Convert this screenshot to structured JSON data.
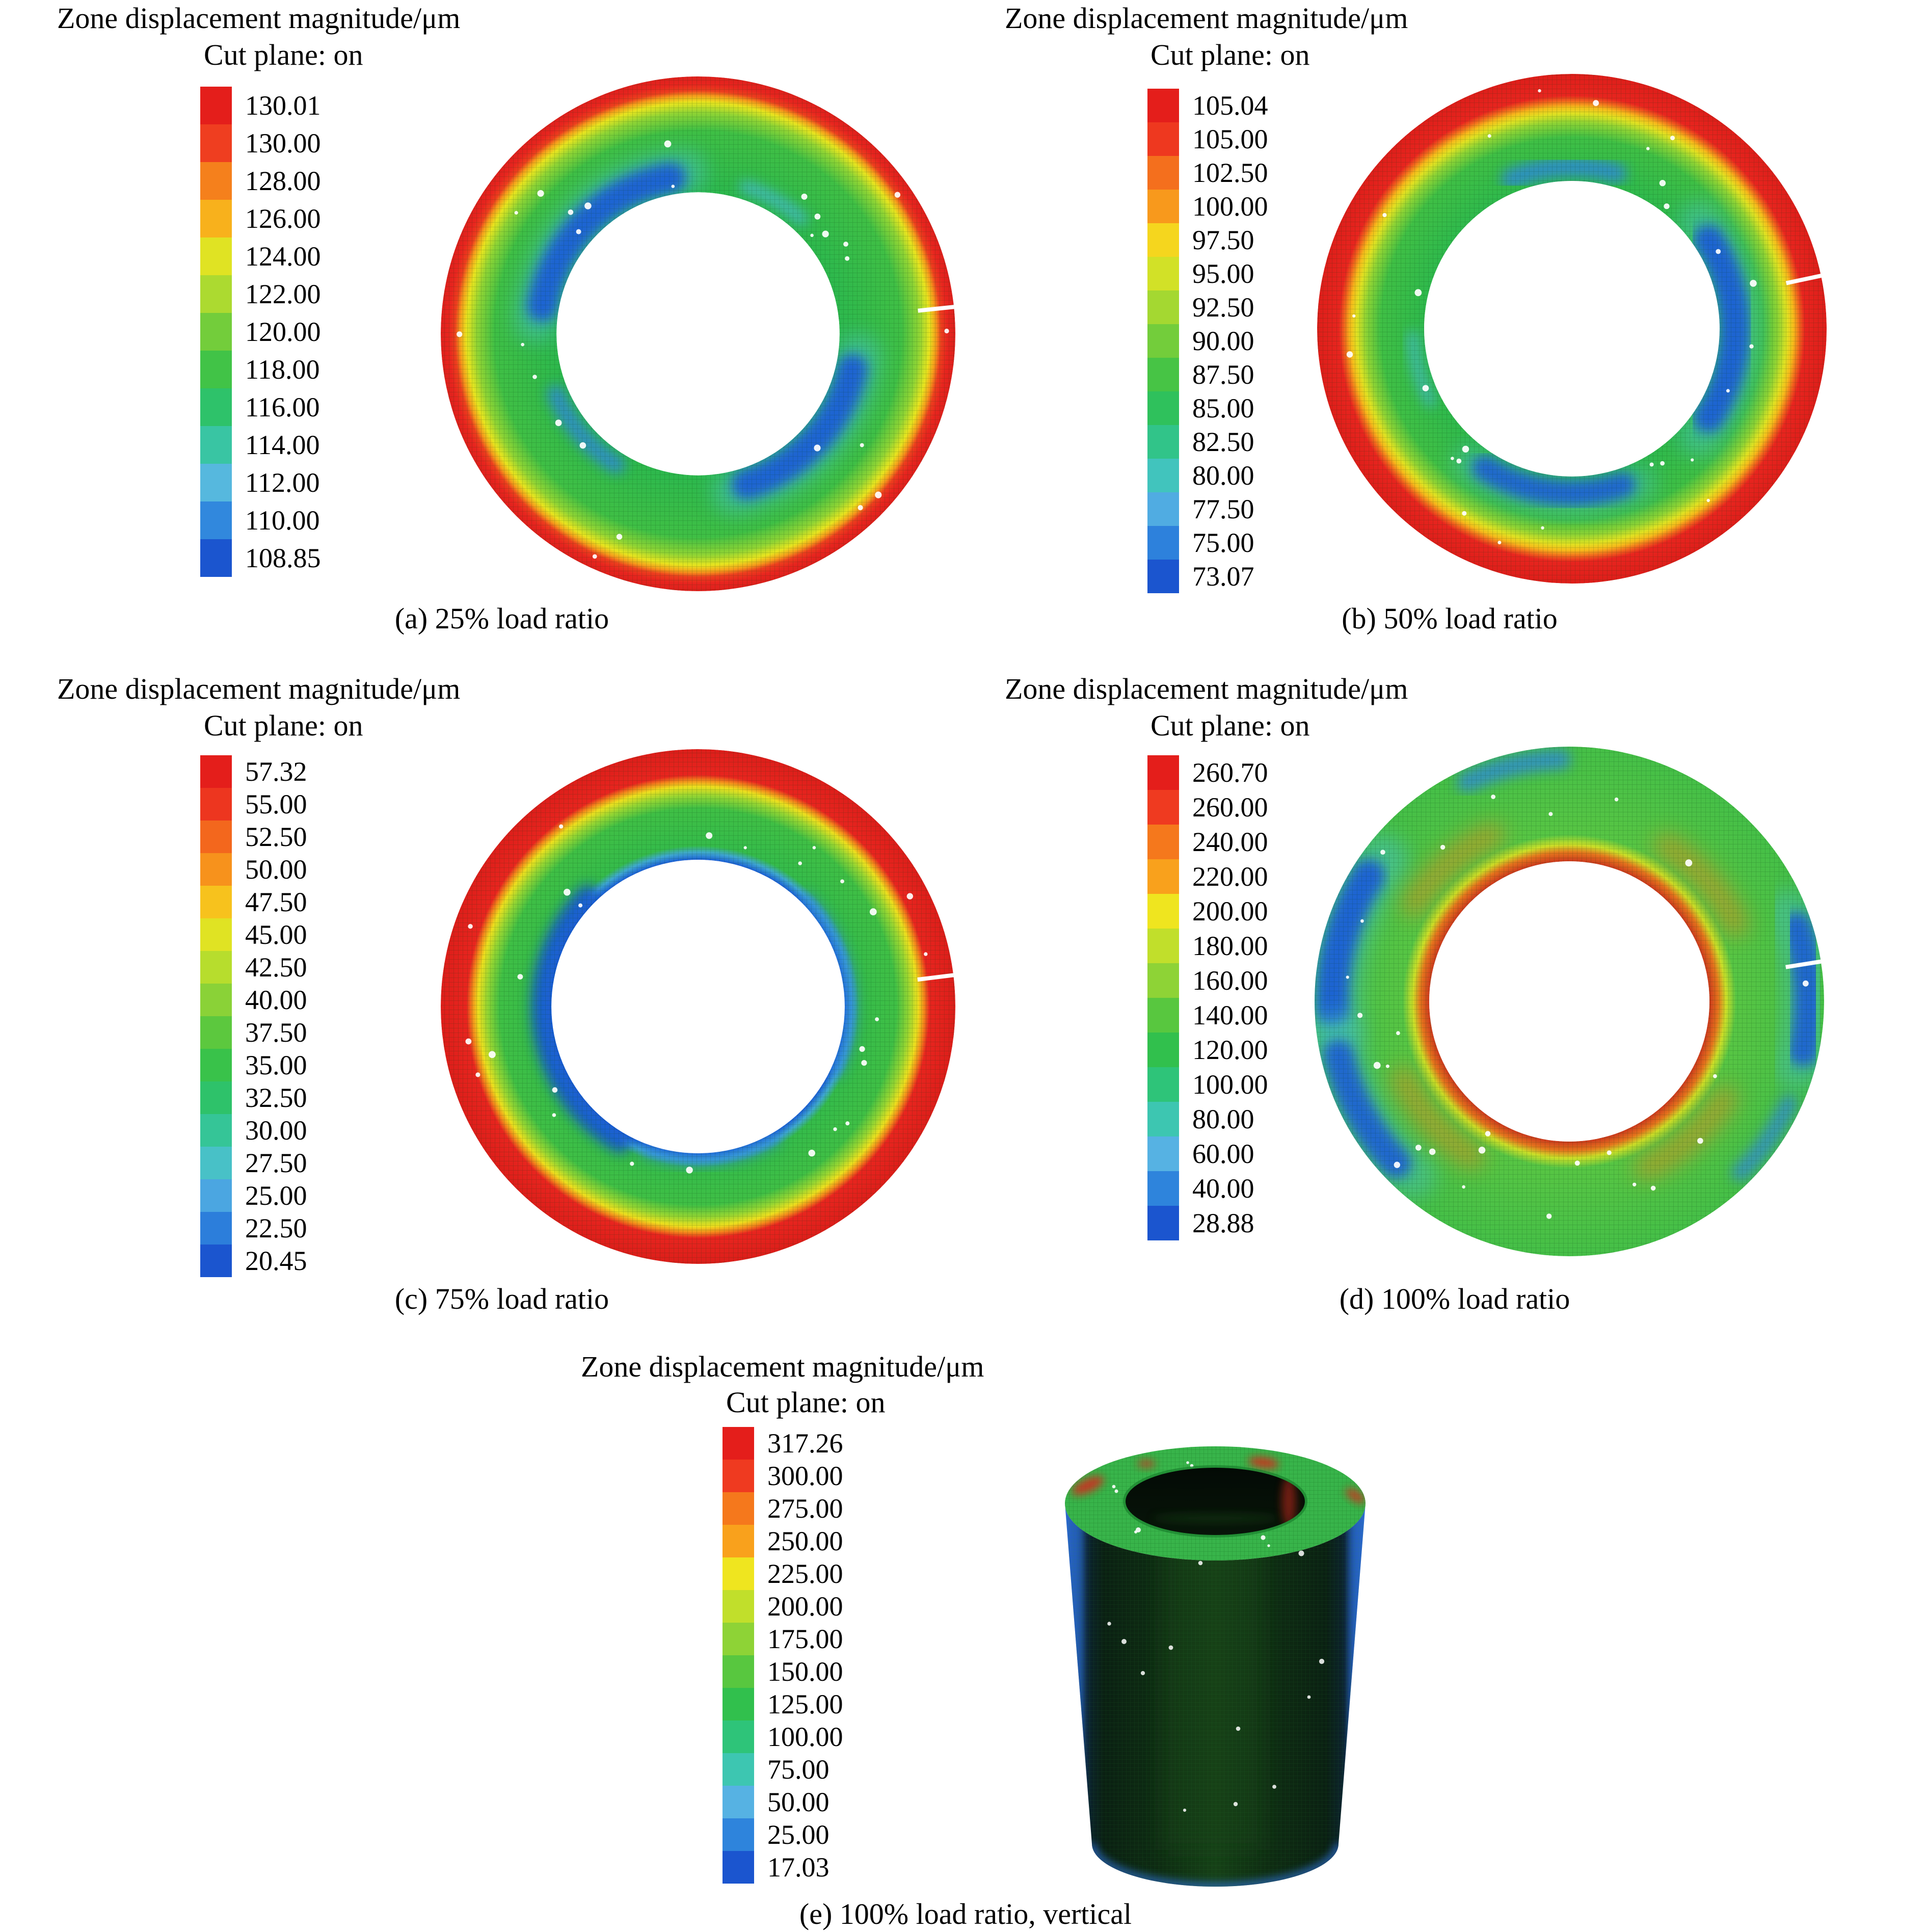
{
  "figure": {
    "description": "FLAC3D-style zone displacement magnitude contour plots of a ring cross-section under four load ratios plus a vertical cylinder view",
    "units": "μm"
  },
  "color_scale": {
    "anchors": [
      [
        0.0,
        "#e41e1b"
      ],
      [
        0.08,
        "#ef3b20"
      ],
      [
        0.16,
        "#f57d1c"
      ],
      [
        0.24,
        "#f9a61c"
      ],
      [
        0.3,
        "#f4e51e"
      ],
      [
        0.38,
        "#c4e02a"
      ],
      [
        0.46,
        "#8fd336"
      ],
      [
        0.54,
        "#57c73f"
      ],
      [
        0.62,
        "#2fc04e"
      ],
      [
        0.7,
        "#2ec47e"
      ],
      [
        0.78,
        "#3fc6b9"
      ],
      [
        0.84,
        "#59b6e3"
      ],
      [
        0.92,
        "#2f86dd"
      ],
      [
        1.0,
        "#1b55cf"
      ]
    ]
  },
  "panels": [
    {
      "id": "a",
      "title": "Zone displacement magnitude/μm",
      "cut_plane": "Cut plane: on",
      "caption": "(a) 25% load ratio",
      "legend_values": [
        "130.01",
        "130.00",
        "128.00",
        "126.00",
        "124.00",
        "122.00",
        "120.00",
        "118.00",
        "116.00",
        "114.00",
        "112.00",
        "110.00",
        "108.85"
      ],
      "ring": {
        "hole": 0.55,
        "slit": 6,
        "stops": [
          [
            0.55,
            "#2db84d"
          ],
          [
            0.79,
            "#3fbf45"
          ],
          [
            0.86,
            "#90d434"
          ],
          [
            0.9,
            "#e7e41f"
          ],
          [
            0.925,
            "#f59c1b"
          ],
          [
            0.945,
            "#ec3f1e"
          ],
          [
            0.97,
            "#e8251f"
          ],
          [
            1,
            "#de201c"
          ]
        ],
        "blobs": [
          {
            "a0": 95,
            "a1": 175,
            "rf": 0.63,
            "w": 0.17,
            "c": "#4cc4c6",
            "o": 0.55,
            "bl": 20
          },
          {
            "a0": 100,
            "a1": 170,
            "rf": 0.615,
            "w": 0.12,
            "c": "#1b5fd6",
            "o": 0.95,
            "bl": 12
          },
          {
            "a0": 283,
            "a1": 352,
            "rf": 0.63,
            "w": 0.17,
            "c": "#4cc4c6",
            "o": 0.55,
            "bl": 20
          },
          {
            "a0": 288,
            "a1": 347,
            "rf": 0.615,
            "w": 0.12,
            "c": "#1b5fd6",
            "o": 0.95,
            "bl": 12
          },
          {
            "a0": 203,
            "a1": 238,
            "rf": 0.6,
            "w": 0.07,
            "c": "#2e86dd",
            "o": 0.8,
            "bl": 12
          },
          {
            "a0": 48,
            "a1": 72,
            "rf": 0.6,
            "w": 0.05,
            "c": "#49b9e0",
            "o": 0.7,
            "bl": 12
          }
        ]
      }
    },
    {
      "id": "b",
      "title": "Zone displacement magnitude/μm",
      "cut_plane": "Cut plane: on",
      "caption": "(b) 50% load ratio",
      "legend_values": [
        "105.04",
        "105.00",
        "102.50",
        "100.00",
        "97.50",
        "95.00",
        "92.50",
        "90.00",
        "87.50",
        "85.00",
        "82.50",
        "80.00",
        "77.50",
        "75.00",
        "73.07"
      ],
      "ring": {
        "hole": 0.58,
        "slit": 12,
        "stops": [
          [
            0.58,
            "#2fb94c"
          ],
          [
            0.75,
            "#3fbf45"
          ],
          [
            0.81,
            "#8fd334"
          ],
          [
            0.845,
            "#dfe122"
          ],
          [
            0.87,
            "#f6bb1b"
          ],
          [
            0.895,
            "#f0611d"
          ],
          [
            0.915,
            "#e8251f"
          ],
          [
            1,
            "#de1e1a"
          ]
        ],
        "blobs": [
          {
            "a0": -40,
            "a1": 40,
            "rf": 0.655,
            "w": 0.16,
            "c": "#4cc4c6",
            "o": 0.5,
            "bl": 20
          },
          {
            "a0": -33,
            "a1": 33,
            "rf": 0.64,
            "w": 0.12,
            "c": "#1b5fd6",
            "o": 0.95,
            "bl": 12
          },
          {
            "a0": 233,
            "a1": 293,
            "rf": 0.66,
            "w": 0.14,
            "c": "#49c0c8",
            "o": 0.45,
            "bl": 20
          },
          {
            "a0": 238,
            "a1": 288,
            "rf": 0.645,
            "w": 0.1,
            "c": "#1b5fd6",
            "o": 0.9,
            "bl": 12
          },
          {
            "a0": 74,
            "a1": 112,
            "rf": 0.635,
            "w": 0.08,
            "c": "#2e86dd",
            "o": 0.8,
            "bl": 12
          },
          {
            "a0": 183,
            "a1": 207,
            "rf": 0.625,
            "w": 0.05,
            "c": "#49b9e0",
            "o": 0.6,
            "bl": 12
          }
        ]
      }
    },
    {
      "id": "c",
      "title": "Zone displacement magnitude/μm",
      "cut_plane": "Cut plane: on",
      "caption": "(c) 75% load ratio",
      "legend_values": [
        "57.32",
        "55.00",
        "52.50",
        "50.00",
        "47.50",
        "45.00",
        "42.50",
        "40.00",
        "37.50",
        "35.00",
        "32.50",
        "30.00",
        "27.50",
        "25.00",
        "22.50",
        "20.45"
      ],
      "ring": {
        "hole": 0.57,
        "slit": 7,
        "stops": [
          [
            0.57,
            "#1b5fd6"
          ],
          [
            0.598,
            "#3fa8cf"
          ],
          [
            0.625,
            "#35bb4a"
          ],
          [
            0.77,
            "#3fbf45"
          ],
          [
            0.82,
            "#96d532"
          ],
          [
            0.855,
            "#ecdf1e"
          ],
          [
            0.878,
            "#f28a1b"
          ],
          [
            0.9,
            "#e8251f"
          ],
          [
            1,
            "#dd1e1a"
          ]
        ],
        "blobs": [
          {
            "a0": 135,
            "a1": 240,
            "rf": 0.605,
            "w": 0.09,
            "c": "#1556cf",
            "o": 0.9,
            "bl": 12
          },
          {
            "a0": -25,
            "a1": 45,
            "rf": 0.592,
            "w": 0.05,
            "c": "#2e86dd",
            "o": 0.75,
            "bl": 12
          },
          {
            "a0": 250,
            "a1": 300,
            "rf": 0.595,
            "w": 0.05,
            "c": "#2e86dd",
            "o": 0.7,
            "bl": 12
          }
        ]
      }
    },
    {
      "id": "d",
      "title": "Zone displacement magnitude/μm",
      "cut_plane": "Cut plane: on",
      "caption": "(d) 100% load ratio",
      "legend_values": [
        "260.70",
        "260.00",
        "240.00",
        "220.00",
        "200.00",
        "180.00",
        "160.00",
        "140.00",
        "120.00",
        "100.00",
        "80.00",
        "60.00",
        "40.00",
        "28.88"
      ],
      "ring": {
        "hole": 0.55,
        "slit": 9,
        "stops": [
          [
            0.55,
            "#cc3a1d"
          ],
          [
            0.585,
            "#e4741d"
          ],
          [
            0.615,
            "#cbdf28"
          ],
          [
            0.655,
            "#57c544"
          ],
          [
            1,
            "#45bf47"
          ]
        ],
        "blobs": [
          {
            "a0": 143,
            "a1": 187,
            "rf": 0.92,
            "w": 0.2,
            "c": "#45c0cb",
            "o": 0.5,
            "bl": 20
          },
          {
            "a0": 148,
            "a1": 182,
            "rf": 0.93,
            "w": 0.13,
            "c": "#1b5fd6",
            "o": 0.95,
            "bl": 12
          },
          {
            "a0": 188,
            "a1": 228,
            "rf": 0.92,
            "w": 0.18,
            "c": "#45c0cb",
            "o": 0.45,
            "bl": 20
          },
          {
            "a0": 193,
            "a1": 223,
            "rf": 0.93,
            "w": 0.12,
            "c": "#1b5fd6",
            "o": 0.9,
            "bl": 12
          },
          {
            "a0": -16,
            "a1": 22,
            "rf": 0.93,
            "w": 0.18,
            "c": "#45c0cb",
            "o": 0.45,
            "bl": 20
          },
          {
            "a0": -12,
            "a1": 18,
            "rf": 0.94,
            "w": 0.12,
            "c": "#1b5fd6",
            "o": 0.9,
            "bl": 12
          },
          {
            "a0": 92,
            "a1": 115,
            "rf": 0.95,
            "w": 0.08,
            "c": "#2e86dd",
            "o": 0.75,
            "bl": 12
          },
          {
            "a0": 315,
            "a1": 335,
            "rf": 0.95,
            "w": 0.07,
            "c": "#2e86dd",
            "o": 0.7,
            "bl": 12
          },
          {
            "a0": 25,
            "a1": 58,
            "rf": 0.72,
            "w": 0.1,
            "c": "#e2881d",
            "o": 0.5,
            "bl": 20
          },
          {
            "a0": 115,
            "a1": 148,
            "rf": 0.72,
            "w": 0.1,
            "c": "#e2881d",
            "o": 0.5,
            "bl": 20
          },
          {
            "a0": 205,
            "a1": 238,
            "rf": 0.72,
            "w": 0.1,
            "c": "#e2881d",
            "o": 0.5,
            "bl": 20
          },
          {
            "a0": 295,
            "a1": 328,
            "rf": 0.72,
            "w": 0.1,
            "c": "#e2881d",
            "o": 0.5,
            "bl": 20
          }
        ]
      }
    },
    {
      "id": "e",
      "title": "Zone displacement magnitude/μm",
      "cut_plane": "Cut plane: on",
      "caption": "(e) 100% load ratio, vertical",
      "legend_values": [
        "317.26",
        "300.00",
        "275.00",
        "250.00",
        "225.00",
        "200.00",
        "175.00",
        "150.00",
        "125.00",
        "100.00",
        "75.00",
        "50.00",
        "25.00",
        "17.03"
      ],
      "cylinder": {
        "face_green": "#38b44a",
        "body_dark": "#0a2012",
        "body_mid": "#0f2d13",
        "body_sheen": "#174118",
        "edge_blue": "#2f6fd6",
        "edge_blue_deep": "#1b4f9e",
        "edge_shadow": "#0c2330",
        "hole_dark": "#081509",
        "inner_red": "#8c2014",
        "fleck_red": "#d8281c"
      }
    }
  ],
  "chart_data": [
    {
      "type": "heatmap",
      "title": "Zone displacement magnitude/μm",
      "subtitle": "Cut plane: on",
      "caption": "(a) 25% load ratio",
      "units": "μm",
      "min": 108.85,
      "max": 130.01,
      "legend_levels": [
        130.01,
        130.0,
        128.0,
        126.0,
        124.0,
        122.0,
        120.0,
        118.0,
        116.0,
        114.0,
        112.0,
        110.0,
        108.85
      ],
      "geometry": "annulus cross-section",
      "distribution": "maximum (red) along outer boundary, green body, minimum blue patches at upper-left and lower-right of inner boundary"
    },
    {
      "type": "heatmap",
      "title": "Zone displacement magnitude/μm",
      "subtitle": "Cut plane: on",
      "caption": "(b) 50% load ratio",
      "units": "μm",
      "min": 73.07,
      "max": 105.04,
      "legend_levels": [
        105.04,
        105.0,
        102.5,
        100.0,
        97.5,
        95.0,
        92.5,
        90.0,
        87.5,
        85.0,
        82.5,
        80.0,
        77.5,
        75.0,
        73.07
      ],
      "geometry": "annulus cross-section",
      "distribution": "thick red band at outer boundary, green body, blue minima at right, bottom and top of inner boundary"
    },
    {
      "type": "heatmap",
      "title": "Zone displacement magnitude/μm",
      "subtitle": "Cut plane: on",
      "caption": "(c) 75% load ratio",
      "units": "μm",
      "min": 20.45,
      "max": 57.32,
      "legend_levels": [
        57.32,
        55.0,
        52.5,
        50.0,
        47.5,
        45.0,
        42.5,
        40.0,
        37.5,
        35.0,
        32.5,
        30.0,
        27.5,
        25.0,
        22.5,
        20.45
      ],
      "geometry": "annulus cross-section",
      "distribution": "thick red band at outer boundary, green body, continuous thin blue minimum ring along inner boundary, thickest on the left"
    },
    {
      "type": "heatmap",
      "title": "Zone displacement magnitude/μm",
      "subtitle": "Cut plane: on",
      "caption": "(d) 100% load ratio",
      "units": "μm",
      "min": 28.88,
      "max": 260.7,
      "legend_levels": [
        260.7,
        260.0,
        240.0,
        220.0,
        200.0,
        180.0,
        160.0,
        140.0,
        120.0,
        100.0,
        80.0,
        60.0,
        40.0,
        28.88
      ],
      "geometry": "annulus cross-section",
      "distribution": "maximum red/orange ring along inner boundary with diagonal orange streaks, green body, blue minima patches at outer boundary (upper-left, lower-left, right)"
    },
    {
      "type": "heatmap",
      "title": "Zone displacement magnitude/μm",
      "subtitle": "Cut plane: on",
      "caption": "(e) 100% load ratio, vertical",
      "units": "μm",
      "min": 17.03,
      "max": 317.26,
      "legend_levels": [
        317.26,
        300.0,
        275.0,
        250.0,
        225.0,
        200.0,
        175.0,
        150.0,
        125.0,
        100.0,
        75.0,
        50.0,
        25.0,
        17.03
      ],
      "geometry": "vertical hollow cylinder, 3D view",
      "distribution": "green top annulus face with small red maxima flecks, dark side wall with blue low-displacement streaks along silhouette edges and bottom rim"
    }
  ]
}
